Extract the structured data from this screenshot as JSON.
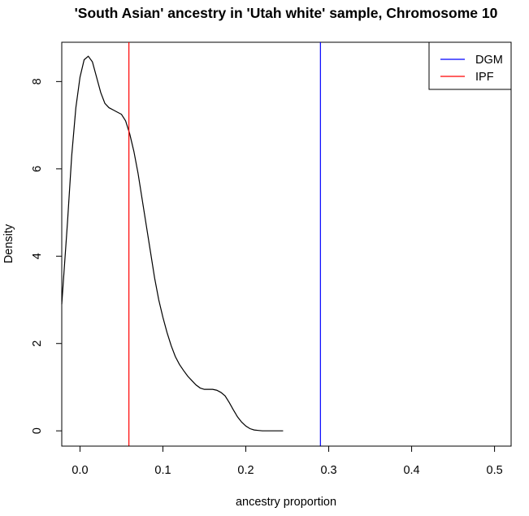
{
  "chart_data": {
    "type": "line",
    "title": "'South Asian' ancestry in 'Utah white' sample, Chromosome 10",
    "xlabel": "ancestry proportion",
    "ylabel": "Density",
    "xlim": [
      -0.022,
      0.52
    ],
    "ylim": [
      -0.35,
      8.9
    ],
    "x_ticks": [
      0.0,
      0.1,
      0.2,
      0.3,
      0.4,
      0.5
    ],
    "x_tick_labels": [
      "0.0",
      "0.1",
      "0.2",
      "0.3",
      "0.4",
      "0.5"
    ],
    "y_ticks": [
      0,
      2,
      4,
      6,
      8
    ],
    "y_tick_labels": [
      "0",
      "2",
      "4",
      "6",
      "8"
    ],
    "series": [
      {
        "name": "density",
        "color": "#000000",
        "x": [
          -0.022,
          -0.015,
          -0.01,
          -0.005,
          0.0,
          0.005,
          0.01,
          0.015,
          0.02,
          0.025,
          0.03,
          0.035,
          0.04,
          0.045,
          0.05,
          0.055,
          0.06,
          0.065,
          0.07,
          0.075,
          0.08,
          0.085,
          0.09,
          0.095,
          0.1,
          0.105,
          0.11,
          0.115,
          0.12,
          0.125,
          0.13,
          0.135,
          0.14,
          0.145,
          0.15,
          0.155,
          0.16,
          0.165,
          0.17,
          0.175,
          0.18,
          0.185,
          0.19,
          0.195,
          0.2,
          0.205,
          0.21,
          0.215,
          0.22,
          0.225,
          0.23,
          0.235,
          0.24,
          0.245
        ],
        "y": [
          2.9,
          4.8,
          6.3,
          7.4,
          8.1,
          8.5,
          8.58,
          8.45,
          8.1,
          7.75,
          7.5,
          7.4,
          7.35,
          7.3,
          7.25,
          7.1,
          6.8,
          6.4,
          5.9,
          5.3,
          4.7,
          4.1,
          3.5,
          3.0,
          2.6,
          2.25,
          1.95,
          1.7,
          1.52,
          1.38,
          1.25,
          1.15,
          1.05,
          0.98,
          0.95,
          0.95,
          0.95,
          0.93,
          0.88,
          0.8,
          0.65,
          0.48,
          0.32,
          0.2,
          0.11,
          0.05,
          0.02,
          0.01,
          0.0,
          0.0,
          0.0,
          0.0,
          0.0,
          0.0
        ]
      }
    ],
    "vlines": [
      {
        "name": "DGM",
        "x": 0.29,
        "color": "#0000ff"
      },
      {
        "name": "IPF",
        "x": 0.059,
        "color": "#ff0000"
      }
    ],
    "legend": {
      "position": "top-right",
      "entries": [
        {
          "label": "DGM",
          "color": "#0000ff"
        },
        {
          "label": "IPF",
          "color": "#ff0000"
        }
      ]
    }
  }
}
